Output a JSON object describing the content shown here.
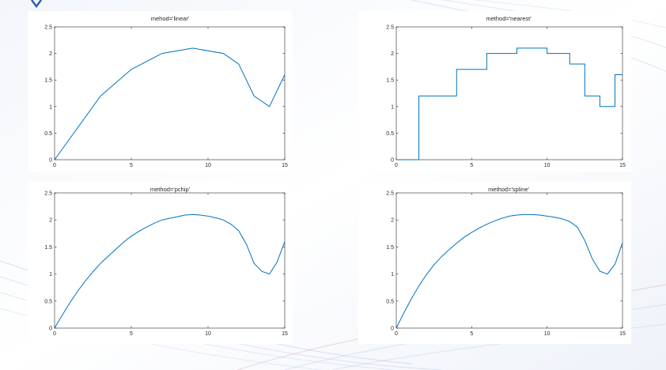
{
  "accent_color": "#0072bd",
  "chart_data": [
    {
      "type": "line",
      "title": "mehod='linear'",
      "xlim": [
        0,
        15
      ],
      "ylim": [
        0,
        2.5
      ],
      "x_ticks": [
        0,
        5,
        10,
        15
      ],
      "y_ticks": [
        0,
        0.5,
        1,
        1.5,
        2,
        2.5
      ],
      "x_tick_labels": [
        "0",
        "5",
        "10",
        "15"
      ],
      "y_tick_labels": [
        "0",
        "0.5",
        "1",
        "1.5",
        "2",
        "2.5"
      ],
      "series": [
        {
          "color": "#0072bd",
          "x": [
            0,
            3,
            5,
            7,
            9,
            11,
            12,
            13,
            14,
            15
          ],
          "y": [
            0,
            1.2,
            1.7,
            2.0,
            2.1,
            2.0,
            1.8,
            1.2,
            1.0,
            1.6
          ]
        }
      ]
    },
    {
      "type": "line",
      "title": "method='nearest'",
      "xlim": [
        0,
        15
      ],
      "ylim": [
        0,
        2.5
      ],
      "x_ticks": [
        0,
        5,
        10,
        15
      ],
      "y_ticks": [
        0,
        0.5,
        1,
        1.5,
        2,
        2.5
      ],
      "x_tick_labels": [
        "0",
        "5",
        "10",
        "15"
      ],
      "y_tick_labels": [
        "0",
        "0.5",
        "1",
        "1.5",
        "2",
        "2.5"
      ],
      "series": [
        {
          "color": "#0072bd",
          "x": [
            0,
            1.5,
            1.5,
            4,
            4,
            6,
            6,
            8,
            8,
            10,
            10,
            11.5,
            11.5,
            12.5,
            12.5,
            13.5,
            13.5,
            14.5,
            14.5,
            15
          ],
          "y": [
            0,
            0,
            1.2,
            1.2,
            1.7,
            1.7,
            2.0,
            2.0,
            2.1,
            2.1,
            2.0,
            2.0,
            1.8,
            1.8,
            1.2,
            1.2,
            1.0,
            1.0,
            1.6,
            1.6
          ]
        }
      ]
    },
    {
      "type": "line",
      "title": "method='pchip'",
      "xlim": [
        0,
        15
      ],
      "ylim": [
        0,
        2.5
      ],
      "x_ticks": [
        0,
        5,
        10,
        15
      ],
      "y_ticks": [
        0,
        0.5,
        1,
        1.5,
        2,
        2.5
      ],
      "x_tick_labels": [
        "0",
        "5",
        "10",
        "15"
      ],
      "y_tick_labels": [
        "0",
        "0.5",
        "1",
        "1.5",
        "2",
        "2.5"
      ],
      "series": [
        {
          "color": "#0072bd",
          "x": [
            0,
            0.5,
            1,
            1.5,
            2,
            2.5,
            3,
            3.5,
            4,
            4.5,
            5,
            5.5,
            6,
            6.5,
            7,
            7.5,
            8,
            8.5,
            9,
            9.5,
            10,
            10.5,
            11,
            11.5,
            12,
            12.5,
            13,
            13.5,
            14,
            14.5,
            15
          ],
          "y": [
            0,
            0.24,
            0.47,
            0.68,
            0.87,
            1.04,
            1.2,
            1.33,
            1.46,
            1.59,
            1.7,
            1.79,
            1.87,
            1.94,
            2.0,
            2.03,
            2.06,
            2.09,
            2.1,
            2.09,
            2.07,
            2.04,
            2.0,
            1.92,
            1.8,
            1.55,
            1.2,
            1.05,
            1.0,
            1.22,
            1.6
          ]
        }
      ]
    },
    {
      "type": "line",
      "title": "method='spline'",
      "xlim": [
        0,
        15
      ],
      "ylim": [
        0,
        2.5
      ],
      "x_ticks": [
        0,
        5,
        10,
        15
      ],
      "y_ticks": [
        0,
        0.5,
        1,
        1.5,
        2,
        2.5
      ],
      "x_tick_labels": [
        "0",
        "5",
        "10",
        "15"
      ],
      "y_tick_labels": [
        "0",
        "0.5",
        "1",
        "1.5",
        "2",
        "2.5"
      ],
      "series": [
        {
          "color": "#0072bd",
          "x": [
            0,
            0.5,
            1,
            1.5,
            2,
            2.5,
            3,
            3.5,
            4,
            4.5,
            5,
            5.5,
            6,
            6.5,
            7,
            7.5,
            8,
            8.5,
            9,
            9.5,
            10,
            10.5,
            11,
            11.5,
            12,
            12.5,
            13,
            13.5,
            14,
            14.5,
            15
          ],
          "y": [
            0,
            0.28,
            0.54,
            0.78,
            0.99,
            1.17,
            1.32,
            1.45,
            1.57,
            1.68,
            1.77,
            1.85,
            1.92,
            1.98,
            2.03,
            2.07,
            2.09,
            2.1,
            2.1,
            2.09,
            2.07,
            2.05,
            2.02,
            1.97,
            1.87,
            1.62,
            1.28,
            1.05,
            1.0,
            1.18,
            1.58
          ]
        }
      ]
    }
  ]
}
